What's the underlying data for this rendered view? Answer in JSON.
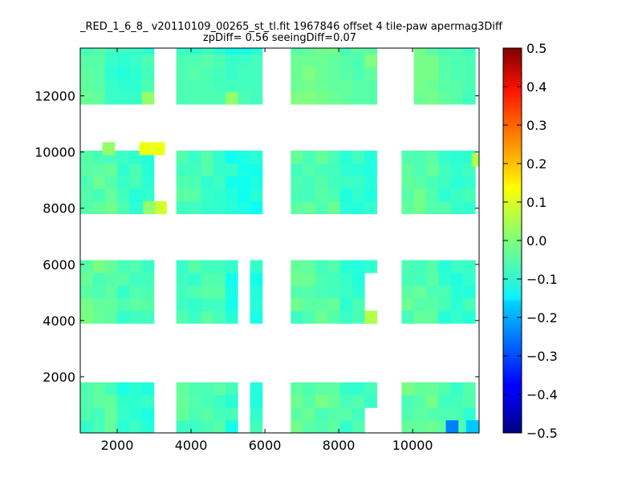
{
  "chart_data": {
    "type": "heatmap",
    "title": "_RED_1_6_8_ v20110109_00265_st_tl.fit 1967846 offset 4 tile-paw apermag3Diff",
    "subtitle": "zpDiff= 0.56 seeingDiff=0.07",
    "xlabel": "",
    "ylabel": "",
    "xlim": [
      1000,
      11800
    ],
    "ylim": [
      0,
      13700
    ],
    "xticks": [
      "2000",
      "4000",
      "6000",
      "8000",
      "10000"
    ],
    "yticks": [
      "2000",
      "4000",
      "6000",
      "8000",
      "10000",
      "12000"
    ],
    "colorbar": {
      "range": [
        -0.5,
        0.5
      ],
      "ticks": [
        "0.5",
        "0.4",
        "0.3",
        "0.2",
        "0.1",
        "0.0",
        "−0.1",
        "−0.2",
        "−0.3",
        "−0.4",
        "−0.5"
      ],
      "colormap": "jet"
    },
    "cell_size": [
      333,
      450
    ],
    "columns": {
      "detector_x_starts": [
        1000,
        4000,
        7000,
        10000
      ],
      "row_bands_y_starts": [
        0,
        3900,
        7800,
        11700
      ],
      "cells_per_band": [
        4,
        4,
        4,
        4
      ]
    },
    "blocks": [
      {
        "x0": 1000,
        "y0": 11700,
        "nx": 6,
        "ny": 4,
        "base": -0.03,
        "values": [
          [
            -0.04,
            -0.04,
            -0.07,
            -0.08,
            -0.07,
            -0.05
          ],
          [
            -0.03,
            -0.04,
            -0.08,
            -0.09,
            -0.08,
            -0.06
          ],
          [
            -0.03,
            -0.04,
            -0.07,
            -0.08,
            -0.08,
            -0.05
          ],
          [
            -0.02,
            -0.03,
            -0.07,
            -0.07,
            -0.07,
            0.02
          ]
        ]
      },
      {
        "x0": 3600,
        "y0": 11700,
        "nx": 7,
        "ny": 4,
        "base": -0.05,
        "values": [
          [
            -0.05,
            -0.05,
            -0.04,
            -0.05,
            -0.07,
            -0.07,
            -0.06
          ],
          [
            -0.05,
            -0.04,
            -0.05,
            -0.06,
            -0.07,
            -0.06,
            -0.06
          ],
          [
            -0.05,
            -0.05,
            -0.05,
            -0.06,
            -0.06,
            -0.06,
            -0.06
          ],
          [
            -0.05,
            -0.05,
            -0.05,
            -0.05,
            0.02,
            -0.05,
            -0.06
          ]
        ]
      },
      {
        "x0": 6700,
        "y0": 11700,
        "nx": 7,
        "ny": 4,
        "base": -0.02,
        "values": [
          [
            -0.02,
            -0.02,
            -0.02,
            -0.03,
            -0.04,
            -0.05,
            0.0
          ],
          [
            -0.02,
            0.0,
            -0.02,
            -0.03,
            -0.04,
            -0.05,
            -0.03
          ],
          [
            -0.02,
            -0.01,
            -0.02,
            -0.03,
            -0.03,
            -0.04,
            -0.04
          ],
          [
            0.0,
            0.0,
            -0.01,
            -0.02,
            -0.03,
            -0.04,
            -0.04
          ]
        ]
      },
      {
        "x0": 9700,
        "y0": 11700,
        "nx": 6,
        "ny": 4,
        "base": -0.02,
        "values": [
          [
            -0.02,
            -0.01,
            -0.01,
            -0.04,
            -0.05,
            -0.05
          ],
          [
            -0.02,
            -0.01,
            -0.01,
            -0.04,
            -0.05,
            -0.05
          ],
          [
            -0.02,
            -0.01,
            -0.02,
            -0.04,
            -0.04,
            -0.05
          ],
          [
            -0.02,
            -0.02,
            -0.01,
            -0.03,
            -0.04,
            -0.06
          ]
        ]
      }
    ],
    "note_cells": [
      {
        "x": 2600,
        "y": 9900,
        "value": 0.11
      },
      {
        "x": 2950,
        "y": 9900,
        "value": 0.11
      },
      {
        "x": 1600,
        "y": 9900,
        "value": 0.02
      },
      {
        "x": 3000,
        "y": 7800,
        "value": 0.08
      },
      {
        "x": 2700,
        "y": 7800,
        "value": 0.02
      },
      {
        "x": 8700,
        "y": 3900,
        "value": 0.05
      },
      {
        "x": 11600,
        "y": 9500,
        "value": 0.05
      },
      {
        "x": 10900,
        "y": 0,
        "value": -0.25
      },
      {
        "x": 11450,
        "y": 0,
        "value": -0.18
      }
    ]
  }
}
